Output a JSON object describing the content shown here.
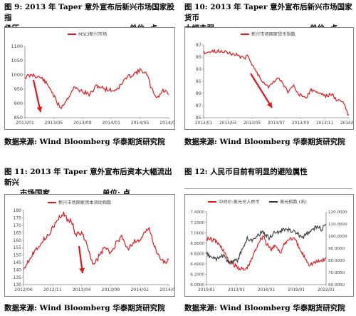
{
  "colors": {
    "red": "#e0161b",
    "dark": "#3a3a3a",
    "axis": "#808080",
    "text": "#404040"
  },
  "panels": [
    {
      "title_line1": "图 9:      2013 年 Taper 意外宣布后新兴市场国家股指",
      "title_line2": "承压",
      "unit": "单位: 点",
      "source": "数据来源: Wind   Bloomberg  华泰期货研究院",
      "chart_data": {
        "type": "line",
        "series": [
          {
            "name": "MSCI新兴市场",
            "color": "#e0161b"
          }
        ],
        "yticks": [
          "1100",
          "1050",
          "1000",
          "950",
          "900",
          "850"
        ],
        "xticks": [
          "2013/01",
          "2013/05",
          "2013/09",
          "2014/01",
          "2014/05",
          "2014/09"
        ],
        "ylim": [
          850,
          1100
        ],
        "arrow": true
      }
    },
    {
      "title_line1": "图 10:    2013 年 Taper 意外宣布后新兴市场国家货币",
      "title_line2": "大幅走弱",
      "unit": "单位: 点",
      "source": "数据来源: Wind   Bloomberg  华泰期货研究院",
      "chart_data": {
        "type": "line",
        "series": [
          {
            "name": "新兴市场国家货币指数",
            "color": "#e0161b"
          }
        ],
        "yticks": [
          "97",
          "95",
          "93",
          "91",
          "89",
          "87",
          "85"
        ],
        "xticks": [
          "2013/01",
          "2013/03",
          "2013/05",
          "2013/07",
          "2013/09",
          "2013/11",
          "2014/01"
        ],
        "ylim": [
          85,
          97
        ],
        "arrow": true
      }
    },
    {
      "title_line1": "图 11:    2013 年 Taper 意外宣布后资本大幅流出新兴",
      "title_line2": "市场国家",
      "unit": "单位: 点",
      "source": "数据来源: Wind   Bloomberg  华泰期货研究院",
      "chart_data": {
        "type": "line",
        "series": [
          {
            "name": "新兴市场国家资本流动指数",
            "color": "#e0161b"
          }
        ],
        "yticks": [
          "180",
          "175",
          "170",
          "165",
          "160",
          "155",
          "150",
          "145",
          "140",
          "135",
          "130"
        ],
        "xticks": [
          "2012/06",
          "2012/11",
          "2013/04",
          "2013/09",
          "2014/02",
          "2014/07"
        ],
        "ylim": [
          130,
          180
        ],
        "arrow": true
      }
    },
    {
      "title_line1": "图 12:    人民币目前有明显的避险属性",
      "title_line2": "",
      "unit": "",
      "source": "数据来源: Wind   Bloomberg  华泰期货研究院",
      "chart_data": {
        "type": "line",
        "series": [
          {
            "name": "中间价:美元兑人民币",
            "color": "#e0161b",
            "axis": "left"
          },
          {
            "name": "美元指数 (右)",
            "color": "#3a3a3a",
            "axis": "right"
          }
        ],
        "yticks_left": [
          "7.4000",
          "7.2000",
          "7.0000",
          "6.8000",
          "6.6000",
          "6.4000",
          "6.2000",
          "6.0000"
        ],
        "yticks_right": [
          "120.0000",
          "110.0000",
          "100.0000",
          "90.0000",
          "80.0000",
          "70.0000",
          "60.0000"
        ],
        "xticks": [
          "2010/01",
          "2013/01",
          "2016/01",
          "2019/01",
          "2022/01"
        ],
        "ylim_left": [
          6.0,
          7.4
        ],
        "ylim_right": [
          60,
          120
        ]
      }
    }
  ]
}
